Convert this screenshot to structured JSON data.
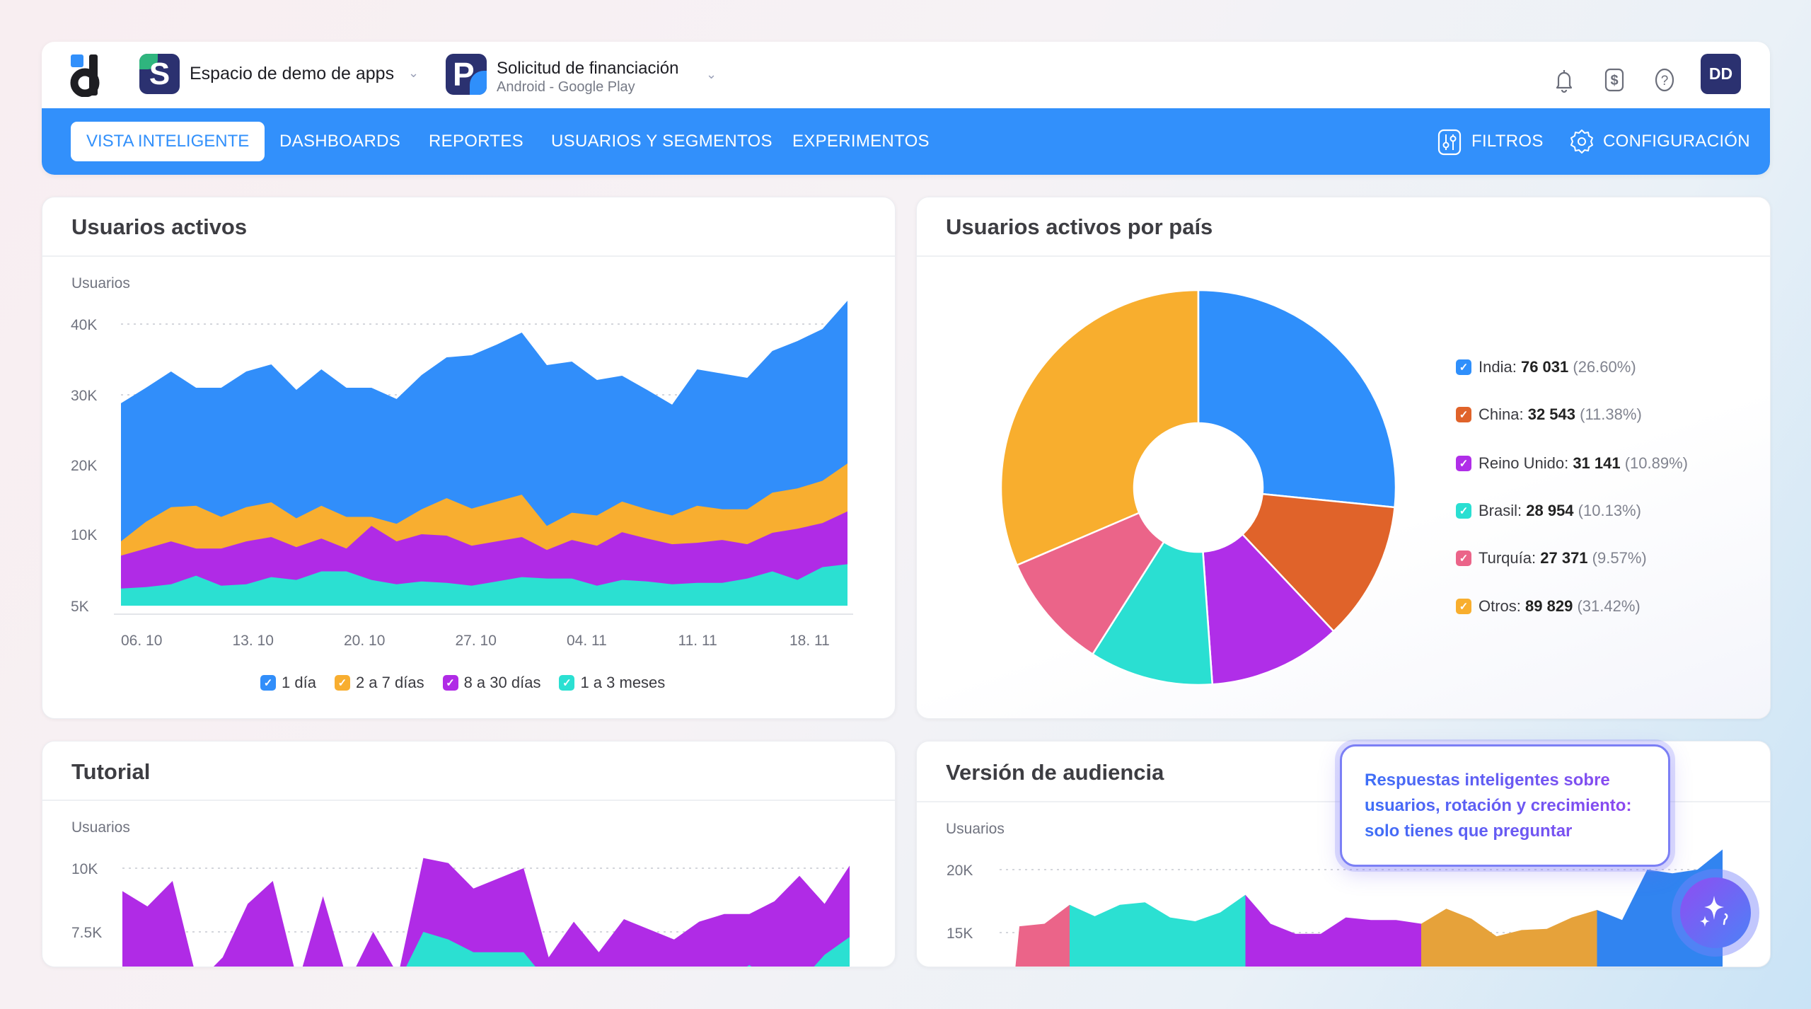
{
  "header": {
    "workspace": {
      "name": "Espacio de demo de apps",
      "icon_letter": "S"
    },
    "app": {
      "name": "Solicitud de financiación",
      "platform": "Android - Google Play",
      "icon_letter": "P"
    },
    "icons": [
      "bell-icon",
      "billing-dollar-icon",
      "help-icon"
    ],
    "avatar_initials": "DD"
  },
  "nav": {
    "items": [
      {
        "label": "VISTA INTELIGENTE",
        "active": true
      },
      {
        "label": "DASHBOARDS"
      },
      {
        "label": "REPORTES"
      },
      {
        "label": "USUARIOS Y SEGMENTOS"
      },
      {
        "label": "EXPERIMENTOS"
      }
    ],
    "filters_label": "FILTROS",
    "settings_label": "CONFIGURACIÓN",
    "accent": "#3290fb"
  },
  "cards": {
    "active_users": {
      "title": "Usuarios activos"
    },
    "by_country": {
      "title": "Usuarios activos por país"
    },
    "tutorial": {
      "title": "Tutorial"
    },
    "audience": {
      "title": "Versión de audiencia"
    }
  },
  "tooltip": {
    "lines": [
      "Respuestas inteligentes sobre",
      "usuarios, rotación y crecimiento:",
      "solo tienes que preguntar"
    ]
  },
  "ai_button": {
    "icon": "sparkles-icon"
  },
  "chart_data": [
    {
      "type": "area",
      "stacked": true,
      "values_are_cumulative_tops": true,
      "ylabel": "Usuarios",
      "yticks": [
        {
          "value": 40,
          "label": "40K"
        },
        {
          "value": 30,
          "label": "30K"
        },
        {
          "value": 20,
          "label": "20K"
        },
        {
          "value": 10,
          "label": "10K"
        },
        {
          "value": 5,
          "label": "5K"
        }
      ],
      "xticks": [
        "06. 10",
        "13. 10",
        "20. 10",
        "27. 10",
        "04. 11",
        "11. 11",
        "18. 11"
      ],
      "grid": true,
      "legend": "bottom",
      "series": [
        {
          "name": "1 día",
          "color": "#318efa",
          "values": [
            28.8,
            31.0,
            33.3,
            31.0,
            31.0,
            33.3,
            34.3,
            30.7,
            33.6,
            31.0,
            31.0,
            29.4,
            32.8,
            35.3,
            35.6,
            37.1,
            38.8,
            34.2,
            34.7,
            32.1,
            32.7,
            30.7,
            28.6,
            33.6,
            33.0,
            32.4,
            36.2,
            37.6,
            39.3,
            43.3
          ]
        },
        {
          "name": "2 a 7 días",
          "color": "#f8ae30",
          "values": [
            9.5,
            11.8,
            13.9,
            14.1,
            12.5,
            13.9,
            14.6,
            12.3,
            14.1,
            12.5,
            12.5,
            11.5,
            13.6,
            15.2,
            13.7,
            14.7,
            15.7,
            11.2,
            13.1,
            12.7,
            14.7,
            13.6,
            12.7,
            14.1,
            13.6,
            13.6,
            16.0,
            16.6,
            17.7,
            20.2
          ]
        },
        {
          "name": "8 a 30 días",
          "color": "#b02be6",
          "values": [
            8.5,
            9.0,
            9.5,
            9.0,
            9.0,
            9.5,
            9.8,
            9.1,
            9.7,
            9.0,
            11.2,
            9.5,
            10.0,
            9.9,
            9.2,
            9.5,
            9.8,
            8.9,
            9.6,
            9.2,
            10.3,
            9.7,
            9.3,
            9.4,
            9.6,
            9.3,
            10.2,
            10.8,
            11.6,
            13.3
          ]
        },
        {
          "name": "1 a 3 meses",
          "color": "#2be0d2",
          "values": [
            6.2,
            6.3,
            6.5,
            7.1,
            6.4,
            6.5,
            7.0,
            6.8,
            7.4,
            7.4,
            6.8,
            6.5,
            6.7,
            6.6,
            6.4,
            6.7,
            7.0,
            6.9,
            6.9,
            6.4,
            6.8,
            6.7,
            6.5,
            6.6,
            6.6,
            6.9,
            7.4,
            6.8,
            7.7,
            7.9
          ]
        }
      ]
    },
    {
      "type": "pie",
      "donut": true,
      "legend": "right",
      "slices": [
        {
          "label": "India",
          "value": "76 031",
          "percent": "26.60%",
          "share": 26.6,
          "color": "#2f8ffb"
        },
        {
          "label": "China",
          "value": "32 543",
          "percent": "11.38%",
          "share": 11.38,
          "color": "#e0632a"
        },
        {
          "label": "Reino Unido",
          "value": "31 141",
          "percent": "10.89%",
          "share": 10.89,
          "color": "#b02ee8"
        },
        {
          "label": "Brasil",
          "value": "28 954",
          "percent": "10.13%",
          "share": 10.13,
          "color": "#2adfd2"
        },
        {
          "label": "Turquía",
          "value": "27 371",
          "percent": "9.57%",
          "share": 9.57,
          "color": "#eb6489"
        },
        {
          "label": "Otros",
          "value": "89 829",
          "percent": "31.42%",
          "share": 31.42,
          "color": "#f8ae2e"
        }
      ]
    },
    {
      "type": "area",
      "ylabel": "Usuarios",
      "yticks": [
        {
          "value": 10,
          "label": "10K"
        },
        {
          "value": 7.5,
          "label": "7.5K"
        }
      ],
      "grid": true,
      "series": [
        {
          "color": "#b02be6",
          "values": [
            9.1,
            8.5,
            9.5,
            5.5,
            6.5,
            8.6,
            9.5,
            5.5,
            8.9,
            5.5,
            7.5,
            5.8,
            10.4,
            10.2,
            9.2,
            9.6,
            10.0,
            6.5,
            7.9,
            6.7,
            8.0,
            7.6,
            7.2,
            7.9,
            8.2,
            8.2,
            8.7,
            9.7,
            8.6,
            10.1
          ]
        },
        {
          "color": "#2be0d2",
          "values": [
            5.5,
            5.5,
            5.5,
            5.5,
            5.5,
            5.5,
            6.1,
            5.5,
            5.5,
            5.5,
            5.5,
            5.5,
            7.5,
            7.2,
            6.7,
            6.7,
            6.7,
            5.5,
            5.5,
            5.5,
            5.5,
            5.5,
            5.5,
            5.5,
            5.5,
            6.2,
            5.5,
            5.5,
            6.6,
            7.3
          ]
        }
      ]
    },
    {
      "type": "area",
      "ylabel": "Usuarios",
      "yticks": [
        {
          "value": 20,
          "label": "20K"
        },
        {
          "value": 15,
          "label": "15K"
        }
      ],
      "grid": true,
      "values": [
        15.5,
        15.7,
        17.2,
        16.3,
        17.2,
        17.4,
        16.2,
        15.9,
        16.6,
        18.0,
        15.7,
        14.9,
        14.9,
        16.2,
        16.0,
        16.0,
        15.7,
        16.9,
        16.1,
        14.7,
        15.2,
        15.3,
        16.2,
        16.8,
        16.0,
        20.0,
        19.7,
        20.0,
        21.6
      ],
      "segments": [
        {
          "from": 0,
          "to": 2,
          "color": "#eb6489"
        },
        {
          "from": 2,
          "to": 9,
          "color": "#2be0d2"
        },
        {
          "from": 9,
          "to": 16,
          "color": "#b02be6"
        },
        {
          "from": 16,
          "to": 23,
          "color": "#e6a23a"
        },
        {
          "from": 23,
          "to": 28,
          "color": "#3184f0"
        }
      ]
    }
  ]
}
